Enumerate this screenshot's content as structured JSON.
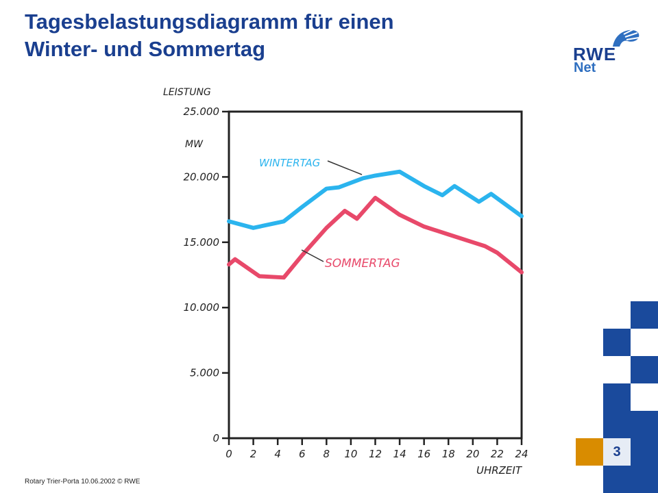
{
  "header": {
    "title_line1": "Tagesbelastungsdiagramm für einen",
    "title_line2": "Winter- und Sommertag"
  },
  "logo": {
    "brand": "RWE",
    "sub": "Net"
  },
  "footer": {
    "text": "Rotary Trier-Porta 10.06.2002 © RWE"
  },
  "page": {
    "number": "3"
  },
  "colors": {
    "title": "#1a3f8f",
    "winter": "#2bb4ee",
    "summer": "#e8496a",
    "accent_blue": "#1a4a9c",
    "accent_orange": "#d98c00"
  },
  "chart_data": {
    "type": "line",
    "title": "",
    "ylabel": "LEISTUNG",
    "yunit": "MW",
    "xlabel": "UHRZEIT",
    "xlim": [
      0,
      24
    ],
    "ylim": [
      0,
      25000
    ],
    "xticks": [
      0,
      2,
      4,
      6,
      8,
      10,
      12,
      14,
      16,
      18,
      20,
      22,
      24
    ],
    "xtick_labels": [
      "0",
      "2",
      "4",
      "6",
      "8",
      "10",
      "12",
      "14",
      "16",
      "18",
      "20",
      "22",
      "24"
    ],
    "yticks": [
      0,
      5000,
      10000,
      15000,
      20000,
      25000
    ],
    "ytick_labels": [
      "0",
      "5.000",
      "10.000",
      "15.000",
      "20.000",
      "25.000"
    ],
    "grid": false,
    "series": [
      {
        "name": "WINTERTAG",
        "color": "#2bb4ee",
        "x": [
          0,
          2,
          4.5,
          6,
          8,
          9,
          11,
          12,
          14,
          16,
          17.5,
          18.5,
          20.5,
          21.5,
          24
        ],
        "y": [
          16600,
          16100,
          16600,
          17700,
          19100,
          19200,
          19900,
          20100,
          20400,
          19300,
          18600,
          19300,
          18100,
          18700,
          17000
        ]
      },
      {
        "name": "SOMMERTAG",
        "color": "#e8496a",
        "x": [
          0,
          0.5,
          2.5,
          4.5,
          6,
          8,
          9.5,
          10.5,
          12,
          14,
          16,
          18,
          20,
          21,
          22,
          24
        ],
        "y": [
          13300,
          13700,
          12400,
          12300,
          14000,
          16100,
          17400,
          16800,
          18400,
          17100,
          16200,
          15600,
          15000,
          14700,
          14200,
          12700
        ]
      }
    ]
  }
}
